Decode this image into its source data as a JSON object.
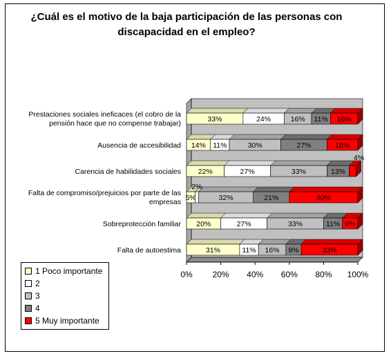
{
  "chart_data": {
    "type": "bar",
    "orientation": "horizontal",
    "stacked": "percent",
    "three_d": true,
    "title": "¿Cuál es el motivo de la baja participación de las personas con discapacidad en el empleo?",
    "categories": [
      [
        "Prestaciones sociales ineficaces (el cobro de la",
        "pensión hace que no compense trabajar)"
      ],
      [
        "Ausencia de accesibilidad"
      ],
      [
        "Carencia de habilidades sociales"
      ],
      [
        "Falta de compromiso/prejuicios por parte de las",
        "empresas"
      ],
      [
        "Sobreprotección familiar"
      ],
      [
        "Falta de autoestima"
      ]
    ],
    "series": [
      {
        "name": "1 Poco importante",
        "color": "#ffffcc",
        "values": [
          33,
          14,
          22,
          5,
          20,
          31
        ],
        "labels": [
          "33%",
          "14%",
          "22%",
          "5%",
          "20%",
          "31%"
        ]
      },
      {
        "name": "2",
        "color": "#ffffff",
        "values": [
          24,
          11,
          27,
          2,
          27,
          11
        ],
        "labels": [
          "24%",
          "11%",
          "27%",
          "2%",
          "27%",
          "11%"
        ]
      },
      {
        "name": "3",
        "color": "#c0c0c0",
        "values": [
          16,
          30,
          33,
          32,
          33,
          16
        ],
        "labels": [
          "16%",
          "30%",
          "33%",
          "32%",
          "33%",
          "16%"
        ]
      },
      {
        "name": "4",
        "color": "#808080",
        "values": [
          11,
          27,
          13,
          21,
          11,
          9
        ],
        "labels": [
          "11%",
          "27%",
          "13%",
          "21%",
          "11%",
          "9%"
        ]
      },
      {
        "name": "5 Muy importante",
        "color": "#ff0000",
        "values": [
          16,
          18,
          4,
          40,
          9,
          33
        ],
        "labels": [
          "16%",
          "18%",
          "4%",
          "40%",
          "9%",
          "33%"
        ]
      }
    ],
    "xlim": [
      0,
      100
    ],
    "x_ticks": [
      "0%",
      "20%",
      "40%",
      "60%",
      "80%",
      "100%"
    ],
    "legend_position": "bottom-left",
    "plot_background": "#c0c0c0"
  }
}
